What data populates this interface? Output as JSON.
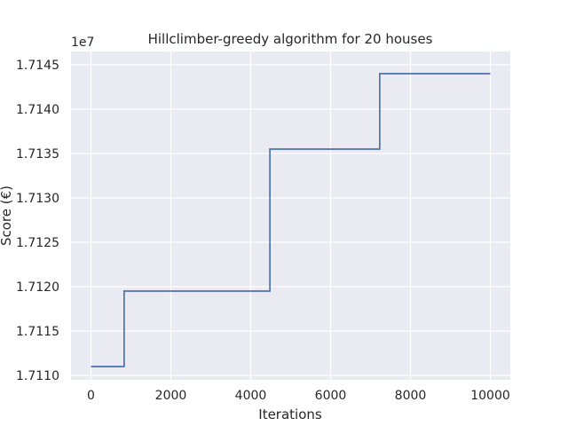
{
  "chart_data": {
    "type": "line",
    "drawstyle": "steps-post",
    "title": "Hillclimber-greedy algorithm for 20 houses",
    "xlabel": "Iterations",
    "ylabel": "Score (€)",
    "y_offset_label": "1e7",
    "xlim": [
      -500,
      10500
    ],
    "ylim": [
      1.71095,
      1.71465
    ],
    "x_ticks": [
      0,
      2000,
      4000,
      6000,
      8000,
      10000
    ],
    "x_tick_labels": [
      "0",
      "2000",
      "4000",
      "6000",
      "8000",
      "10000"
    ],
    "y_ticks": [
      1.711,
      1.7115,
      1.712,
      1.7125,
      1.713,
      1.7135,
      1.714,
      1.7145
    ],
    "y_tick_labels": [
      "1.7110",
      "1.7115",
      "1.7120",
      "1.7125",
      "1.7130",
      "1.7135",
      "1.7140",
      "1.7145"
    ],
    "grid": true,
    "background": "#eaeaf2",
    "grid_color": "#ffffff",
    "series": [
      {
        "color": "#4c72b0",
        "x": [
          0,
          830,
          830,
          4480,
          4480,
          7230,
          7230,
          10000
        ],
        "y": [
          1.7111,
          1.7111,
          1.71195,
          1.71195,
          1.71355,
          1.71355,
          1.7144,
          1.7144
        ]
      }
    ]
  }
}
